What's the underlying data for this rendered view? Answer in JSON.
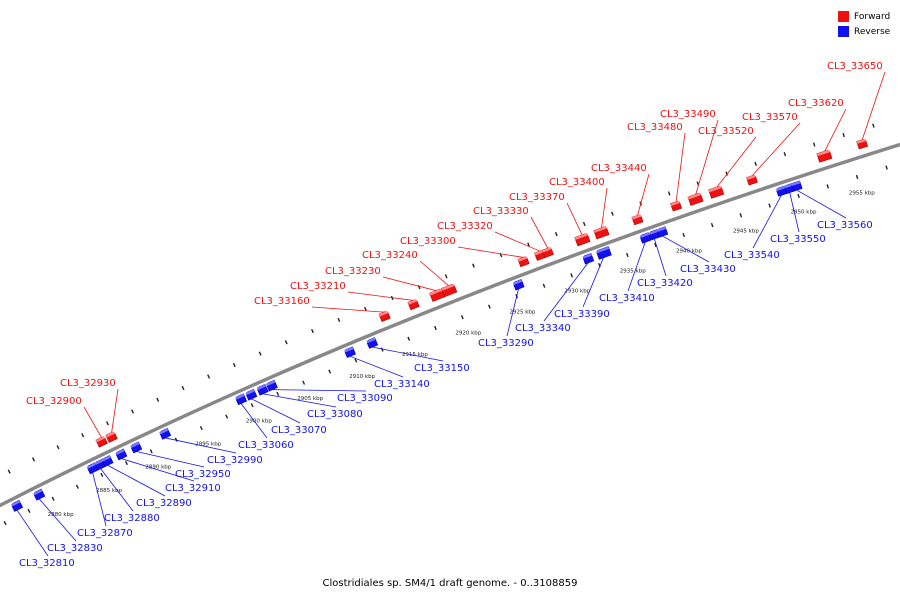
{
  "legend": {
    "forward_label": "Forward",
    "reverse_label": "Reverse",
    "forward_color": "#ee1111",
    "reverse_color": "#1111ee"
  },
  "caption": "Clostridiales sp. SM4/1 draft genome. - 0..3108859",
  "scale": {
    "unit": "kbp",
    "range_kbp": [
      2875,
      2960
    ],
    "labels": [
      "2880 kbp",
      "2885 kbp",
      "2890 kbp",
      "2895 kbp",
      "2900 kbp",
      "2905 kbp",
      "2910 kbp",
      "2915 kbp",
      "2920 kbp",
      "2925 kbp",
      "2930 kbp",
      "2935 kbp",
      "2940 kbp",
      "2945 kbp",
      "2950 kbp",
      "2955 kbp"
    ],
    "label_values_kbp": [
      2880,
      2885,
      2890,
      2895,
      2900,
      2905,
      2910,
      2915,
      2920,
      2925,
      2930,
      2935,
      2940,
      2945,
      2950,
      2955
    ]
  },
  "genes": [
    {
      "id": "CL3_32810",
      "strand": "reverse",
      "kbp": 2877.2
    },
    {
      "id": "CL3_32830",
      "strand": "reverse",
      "kbp": 2879.5
    },
    {
      "id": "CL3_32870",
      "strand": "reverse",
      "kbp": 2885.0
    },
    {
      "id": "CL3_32880",
      "strand": "reverse",
      "kbp": 2885.8
    },
    {
      "id": "CL3_32890",
      "strand": "reverse",
      "kbp": 2886.5
    },
    {
      "id": "CL3_32900",
      "strand": "forward",
      "kbp": 2886.8
    },
    {
      "id": "CL3_32910",
      "strand": "reverse",
      "kbp": 2887.9
    },
    {
      "id": "CL3_32930",
      "strand": "forward",
      "kbp": 2887.8
    },
    {
      "id": "CL3_32950",
      "strand": "reverse",
      "kbp": 2889.4
    },
    {
      "id": "CL3_32990",
      "strand": "reverse",
      "kbp": 2892.3
    },
    {
      "id": "CL3_33060",
      "strand": "reverse",
      "kbp": 2899.8
    },
    {
      "id": "CL3_33070",
      "strand": "reverse",
      "kbp": 2900.8
    },
    {
      "id": "CL3_33080",
      "strand": "reverse",
      "kbp": 2901.9
    },
    {
      "id": "CL3_33090",
      "strand": "reverse",
      "kbp": 2902.8
    },
    {
      "id": "CL3_33140",
      "strand": "reverse",
      "kbp": 2910.3
    },
    {
      "id": "CL3_33150",
      "strand": "reverse",
      "kbp": 2912.4
    },
    {
      "id": "CL3_33160",
      "strand": "forward",
      "kbp": 2914.3
    },
    {
      "id": "CL3_33210",
      "strand": "forward",
      "kbp": 2917.0
    },
    {
      "id": "CL3_33230",
      "strand": "forward",
      "kbp": 2919.2
    },
    {
      "id": "CL3_33240",
      "strand": "forward",
      "kbp": 2920.3
    },
    {
      "id": "CL3_33290",
      "strand": "reverse",
      "kbp": 2926.0
    },
    {
      "id": "CL3_33300",
      "strand": "forward",
      "kbp": 2927.1
    },
    {
      "id": "CL3_33320",
      "strand": "forward",
      "kbp": 2928.6
    },
    {
      "id": "CL3_33330",
      "strand": "forward",
      "kbp": 2929.3
    },
    {
      "id": "CL3_33340",
      "strand": "reverse",
      "kbp": 2932.3
    },
    {
      "id": "CL3_33370",
      "strand": "forward",
      "kbp": 2932.4
    },
    {
      "id": "CL3_33390",
      "strand": "reverse",
      "kbp": 2933.7
    },
    {
      "id": "CL3_33400",
      "strand": "forward",
      "kbp": 2934.1
    },
    {
      "id": "CL3_33410",
      "strand": "reverse",
      "kbp": 2937.4
    },
    {
      "id": "CL3_33420",
      "strand": "reverse",
      "kbp": 2938.2
    },
    {
      "id": "CL3_33430",
      "strand": "reverse",
      "kbp": 2938.9
    },
    {
      "id": "CL3_33440",
      "strand": "forward",
      "kbp": 2937.3
    },
    {
      "id": "CL3_33480",
      "strand": "forward",
      "kbp": 2940.7
    },
    {
      "id": "CL3_33490",
      "strand": "forward",
      "kbp": 2942.4
    },
    {
      "id": "CL3_33520",
      "strand": "forward",
      "kbp": 2944.2
    },
    {
      "id": "CL3_33540",
      "strand": "reverse",
      "kbp": 2949.3
    },
    {
      "id": "CL3_33550",
      "strand": "reverse",
      "kbp": 2950.0
    },
    {
      "id": "CL3_33560",
      "strand": "reverse",
      "kbp": 2950.6
    },
    {
      "id": "CL3_33570",
      "strand": "forward",
      "kbp": 2947.3
    },
    {
      "id": "CL3_33620",
      "strand": "forward",
      "kbp": 2953.5
    },
    {
      "id": "CL3_33650",
      "strand": "forward",
      "kbp": 2956.7
    }
  ]
}
